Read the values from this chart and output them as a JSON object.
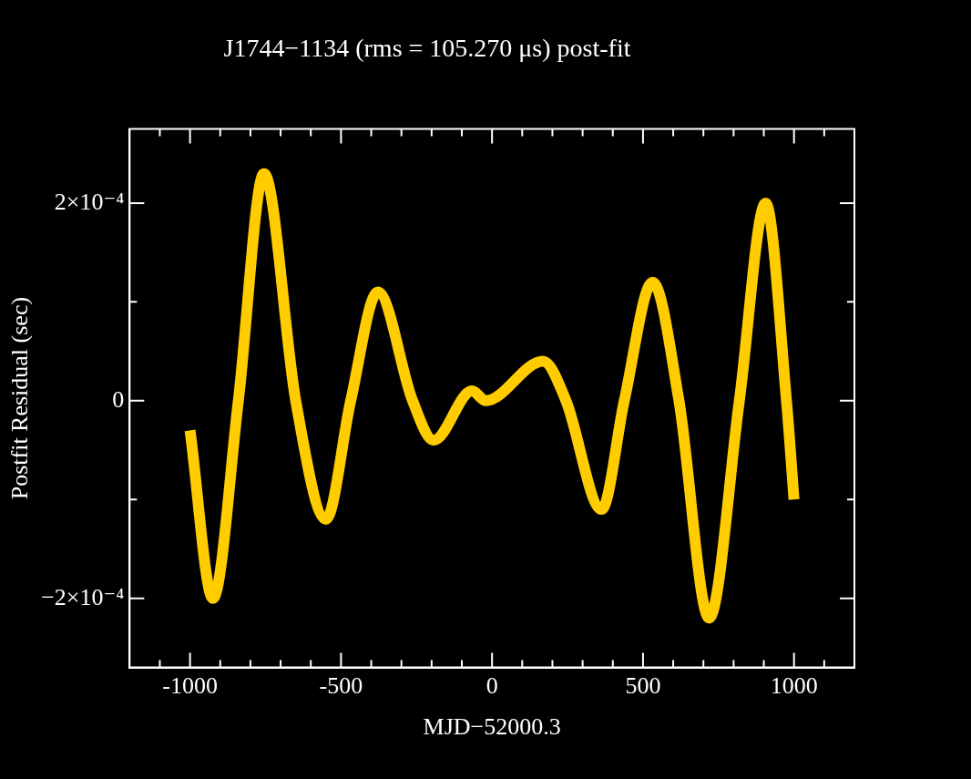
{
  "chart_data": {
    "type": "line",
    "title": "J1744−1134 (rms = 105.270 μs) post-fit",
    "xlabel": "MJD−52000.3",
    "ylabel": "Postfit Residual (sec)",
    "x": [
      -1000,
      -924,
      -840,
      -755,
      -650,
      -550,
      -468,
      -378,
      -263,
      -193,
      -66,
      -21,
      169,
      245,
      363,
      438,
      532,
      619,
      719,
      819,
      906,
      975,
      1000
    ],
    "series": [
      {
        "color": "#ffcc00",
        "values": [
          -3e-05,
          -0.0002,
          0,
          0.00023,
          0,
          -0.00012,
          0,
          0.00011,
          0,
          -4e-05,
          1e-05,
          0,
          4e-05,
          0,
          -0.00011,
          0,
          0.00012,
          0,
          -0.00022,
          0,
          0.0002,
          0,
          -0.0001
        ]
      }
    ],
    "xlim": [
      -1200,
      1200
    ],
    "xticks": [
      {
        "value": -1100,
        "label": null
      },
      -1000,
      {
        "value": -900,
        "label": null
      },
      {
        "value": -800,
        "label": null
      },
      {
        "value": -700,
        "label": null
      },
      {
        "value": -600,
        "label": null
      },
      -500,
      {
        "value": -400,
        "label": null
      },
      {
        "value": -300,
        "label": null
      },
      {
        "value": -200,
        "label": null
      },
      {
        "value": -100,
        "label": null
      },
      0,
      {
        "value": 100,
        "label": null
      },
      {
        "value": 200,
        "label": null
      },
      {
        "value": 300,
        "label": null
      },
      {
        "value": 400,
        "label": null
      },
      500,
      {
        "value": 600,
        "label": null
      },
      {
        "value": 700,
        "label": null
      },
      {
        "value": 800,
        "label": null
      },
      {
        "value": 900,
        "label": null
      },
      1000,
      {
        "value": 1100,
        "label": null
      }
    ],
    "ylim": [
      -0.00027,
      0.000275
    ],
    "yticks": [
      {
        "value": -0.0002,
        "label": "−2×10⁻⁴"
      },
      {
        "value": -0.0001,
        "label": null
      },
      0,
      {
        "value": 0.0001,
        "label": null
      },
      {
        "value": 0.0002,
        "label": "2×10⁻⁴"
      }
    ],
    "grid": false,
    "legend": false,
    "marker": "none",
    "line_style": "solid"
  }
}
